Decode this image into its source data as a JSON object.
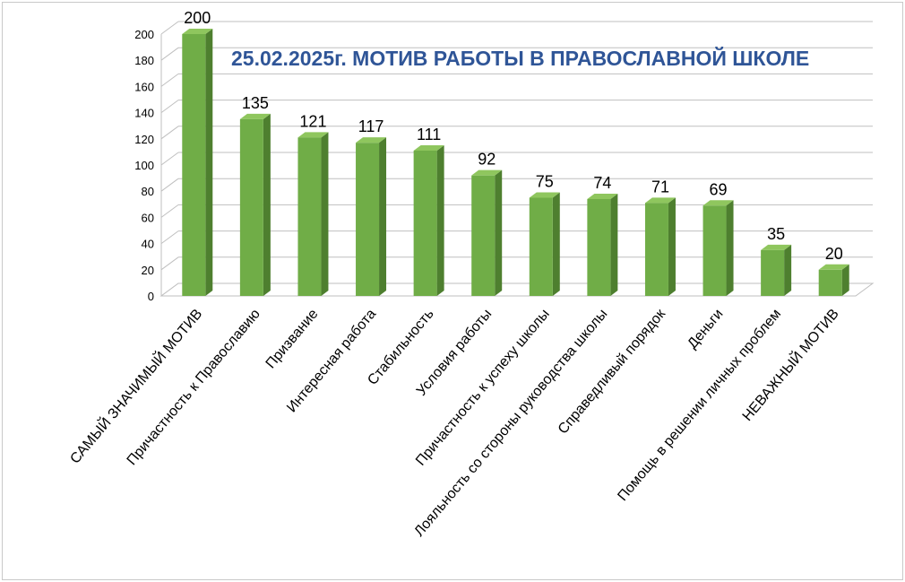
{
  "chart_data": {
    "type": "bar",
    "title": "25.02.2025г.  МОТИВ РАБОТЫ В ПРАВОСЛАВНОЙ ШКОЛЕ",
    "categories": [
      "САМЫЙ ЗНАЧИМЫЙ МОТИВ",
      "Причастность к Православию",
      "Призвание",
      "Интересная работа",
      "Стабильность",
      "Условия работы",
      "Причастность к успеху школы",
      "Лояльность со стороны руководства школы",
      "Справедливый порядок",
      "Деньги",
      "Помощь в решении личных проблем",
      "НЕВАЖНЫЙ МОТИВ"
    ],
    "values": [
      200,
      135,
      121,
      117,
      111,
      92,
      75,
      74,
      71,
      69,
      35,
      20
    ],
    "ylim": [
      0,
      200
    ],
    "yticks": [
      0,
      20,
      40,
      60,
      80,
      100,
      120,
      140,
      160,
      180,
      200
    ],
    "grid": true,
    "colors": {
      "bar_front": "#70ad47",
      "bar_side": "#4e7f2f",
      "bar_top": "#8fc65e",
      "title": "#2f5597"
    }
  }
}
